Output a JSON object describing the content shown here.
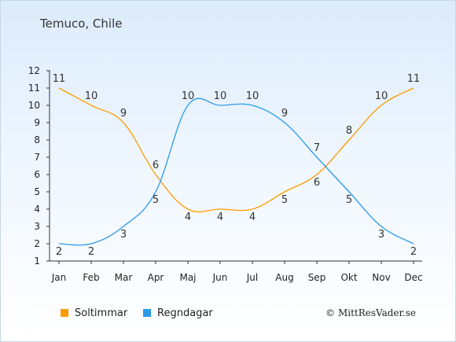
{
  "title": "Temuco, Chile",
  "copyright": "© MittResVader.se",
  "legend": [
    {
      "label": "Soltimmar",
      "color": "#ff9a00"
    },
    {
      "label": "Regndagar",
      "color": "#2b9aea"
    }
  ],
  "chart_data": {
    "type": "line",
    "title": "Temuco, Chile",
    "categories": [
      "Jan",
      "Feb",
      "Mar",
      "Apr",
      "Maj",
      "Jun",
      "Jul",
      "Aug",
      "Sep",
      "Okt",
      "Nov",
      "Dec"
    ],
    "series": [
      {
        "name": "Soltimmar",
        "color": "#ff9a00",
        "values": [
          11,
          10,
          9,
          6,
          4,
          4,
          4,
          5,
          6,
          8,
          10,
          11
        ]
      },
      {
        "name": "Regndagar",
        "color": "#2b9aea",
        "values": [
          2,
          2,
          3,
          5,
          10,
          10,
          10,
          9,
          7,
          5,
          3,
          2
        ]
      }
    ],
    "yticks": [
      1,
      2,
      3,
      4,
      5,
      6,
      7,
      8,
      9,
      10,
      11,
      12
    ],
    "ylim": [
      1,
      12
    ],
    "grid": false,
    "legend_position": "bottom-left"
  }
}
